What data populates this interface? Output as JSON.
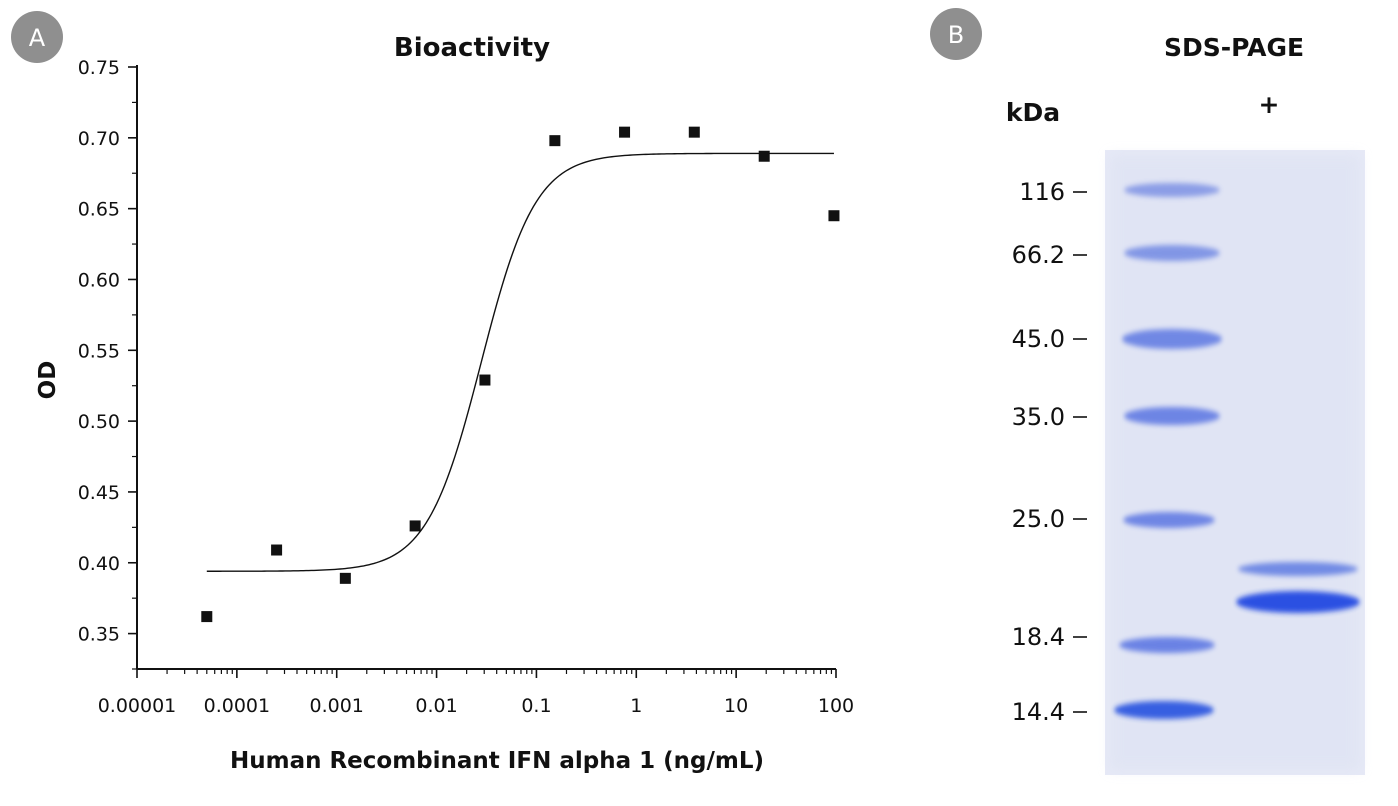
{
  "panel_a": {
    "badge": "A",
    "chart_data": {
      "type": "scatter",
      "title": "Bioactivity",
      "xlabel": "Human Recombinant IFN alpha 1 (ng/mL)",
      "ylabel": "OD",
      "xscale": "log",
      "xlim": [
        1e-05,
        100
      ],
      "ylim": [
        0.325,
        0.75
      ],
      "x_ticks": [
        1e-05,
        0.0001,
        0.001,
        0.01,
        0.1,
        1,
        10,
        100
      ],
      "x_tick_labels": [
        "0.00001",
        "0.0001",
        "0.001",
        "0.01",
        "0.1",
        "1",
        "10",
        "100"
      ],
      "y_ticks": [
        0.35,
        0.4,
        0.45,
        0.5,
        0.55,
        0.6,
        0.65,
        0.7,
        0.75
      ],
      "y_tick_labels": [
        "0.35",
        "0.40",
        "0.45",
        "0.50",
        "0.55",
        "0.60",
        "0.65",
        "0.70",
        "0.75"
      ],
      "series": [
        {
          "name": "data",
          "x": [
            5e-05,
            0.00025,
            0.00122,
            0.0061,
            0.0305,
            0.153,
            0.763,
            3.81,
            19.1,
            95.4
          ],
          "y": [
            0.362,
            0.409,
            0.389,
            0.426,
            0.529,
            0.698,
            0.704,
            0.704,
            0.687,
            0.645
          ]
        }
      ],
      "fit": {
        "type": "4PL",
        "bottom": 0.394,
        "top": 0.689,
        "ec50": 0.028,
        "hill": 1.6,
        "x_range": [
          5e-05,
          95.4
        ]
      },
      "grid": false
    }
  },
  "panel_b": {
    "badge": "B",
    "title": "SDS-PAGE",
    "unit_label": "kDa",
    "lane_label": "+",
    "markers": [
      "116",
      "66.2",
      "45.0",
      "35.0",
      "25.0",
      "18.4",
      "14.4"
    ],
    "sample_bands": [
      "upper band",
      "main band"
    ],
    "colors": {
      "gel": "#e6e9f6",
      "band": "#2d55e0"
    }
  }
}
